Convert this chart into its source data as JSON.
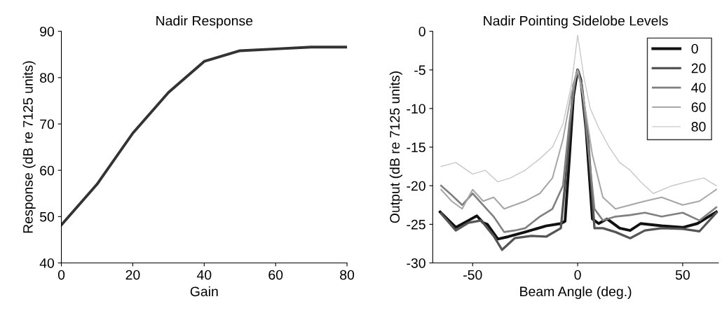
{
  "chart_data": [
    {
      "type": "line",
      "title": "Nadir Response",
      "xlabel": "Gain",
      "ylabel": "Response (dB re 7125 units)",
      "xlim": [
        0,
        80
      ],
      "ylim": [
        40,
        90
      ],
      "xticks": [
        0,
        20,
        40,
        60,
        80
      ],
      "yticks": [
        40,
        50,
        60,
        70,
        80,
        90
      ],
      "grid": false,
      "legend": false,
      "x": [
        0,
        10,
        20,
        30,
        40,
        50,
        60,
        70,
        80
      ],
      "series": [
        {
          "color": "#333333",
          "values": [
            48.2,
            57,
            68,
            76.8,
            83.5,
            85.8,
            86.2,
            86.6,
            86.6
          ]
        }
      ]
    },
    {
      "type": "line",
      "title": "Nadir Pointing Sidelobe Levels",
      "xlabel": "Beam Angle (deg.)",
      "ylabel": "Output (dB re 7125 units)",
      "xlim": [
        -69,
        67
      ],
      "ylim": [
        -30,
        0
      ],
      "xticks": [
        -50,
        0,
        50
      ],
      "yticks": [
        -30,
        -25,
        -20,
        -15,
        -10,
        -5,
        0
      ],
      "grid": false,
      "legend": "top right",
      "series": [
        {
          "name": "0",
          "color": "#111111",
          "x": [
            -65.5,
            -58,
            -52,
            -48,
            -45,
            -43,
            -38,
            -33,
            -25,
            -15,
            -8,
            -6,
            -4,
            -2,
            0,
            1.5,
            4,
            7,
            10,
            14,
            20,
            25,
            30,
            40,
            50,
            57,
            66
          ],
          "values": [
            -23.4,
            -25.4,
            -24.5,
            -23.9,
            -24.8,
            -25,
            -26.9,
            -26.6,
            -26,
            -25.2,
            -24.9,
            -24.6,
            -16.7,
            -8.4,
            -5,
            -6.3,
            -12.7,
            -24.3,
            -24.9,
            -24.3,
            -25.5,
            -25.8,
            -24.9,
            -25.2,
            -25.4,
            -24.9,
            -23.4
          ]
        },
        {
          "name": "20",
          "color": "#555555",
          "x": [
            -65,
            -58,
            -52,
            -46,
            -40,
            -36,
            -30,
            -22,
            -15,
            -8,
            -5,
            -2,
            0,
            2,
            5,
            8,
            12,
            18,
            25,
            32,
            40,
            50,
            58,
            66
          ],
          "values": [
            -23.6,
            -25.8,
            -24.8,
            -24.5,
            -26.5,
            -28.3,
            -26.8,
            -26.5,
            -26.6,
            -25.5,
            -17,
            -7,
            -5.2,
            -7,
            -14,
            -25.5,
            -25.5,
            -26,
            -26.8,
            -25.8,
            -25.5,
            -25.6,
            -25.9,
            -23.5
          ]
        },
        {
          "name": "40",
          "color": "#808080",
          "x": [
            -65,
            -60,
            -55,
            -50,
            -45,
            -40,
            -35,
            -30,
            -25,
            -18,
            -12,
            -7,
            -4,
            -1,
            0,
            2,
            5,
            8,
            12,
            18,
            25,
            32,
            40,
            50,
            58,
            66
          ],
          "values": [
            -20,
            -21.2,
            -22.5,
            -21,
            -22.5,
            -24,
            -26,
            -25.8,
            -25.5,
            -24,
            -23,
            -20,
            -12,
            -6,
            -5,
            -7,
            -15,
            -23,
            -24.5,
            -24,
            -23.8,
            -23.5,
            -24,
            -23.5,
            -24.5,
            -22.8
          ]
        },
        {
          "name": "60",
          "color": "#a6a6a6",
          "x": [
            -65,
            -60,
            -55,
            -50,
            -45,
            -40,
            -35,
            -30,
            -25,
            -18,
            -12,
            -7,
            -3,
            0,
            3,
            7,
            12,
            18,
            25,
            32,
            40,
            50,
            58,
            66
          ],
          "values": [
            -20.5,
            -22,
            -23,
            -20.5,
            -22,
            -21.5,
            -23,
            -22.5,
            -22,
            -21,
            -19,
            -14,
            -8,
            -5,
            -9,
            -16,
            -21.5,
            -23,
            -22.5,
            -22,
            -21.5,
            -22.5,
            -22,
            -20.5
          ]
        },
        {
          "name": "80",
          "color": "#c8c8c8",
          "x": [
            -65,
            -58,
            -50,
            -44,
            -38,
            -32,
            -25,
            -18,
            -12,
            -7,
            -3,
            0,
            3,
            6,
            10,
            15,
            20,
            25,
            30,
            36,
            45,
            52,
            60,
            66
          ],
          "values": [
            -17.5,
            -17,
            -18.5,
            -18,
            -19.5,
            -19,
            -18,
            -16.5,
            -15,
            -12,
            -7,
            -0.5,
            -6,
            -10,
            -12.5,
            -15,
            -17,
            -18,
            -19.5,
            -21,
            -20,
            -19.5,
            -19,
            -20
          ]
        }
      ]
    }
  ]
}
